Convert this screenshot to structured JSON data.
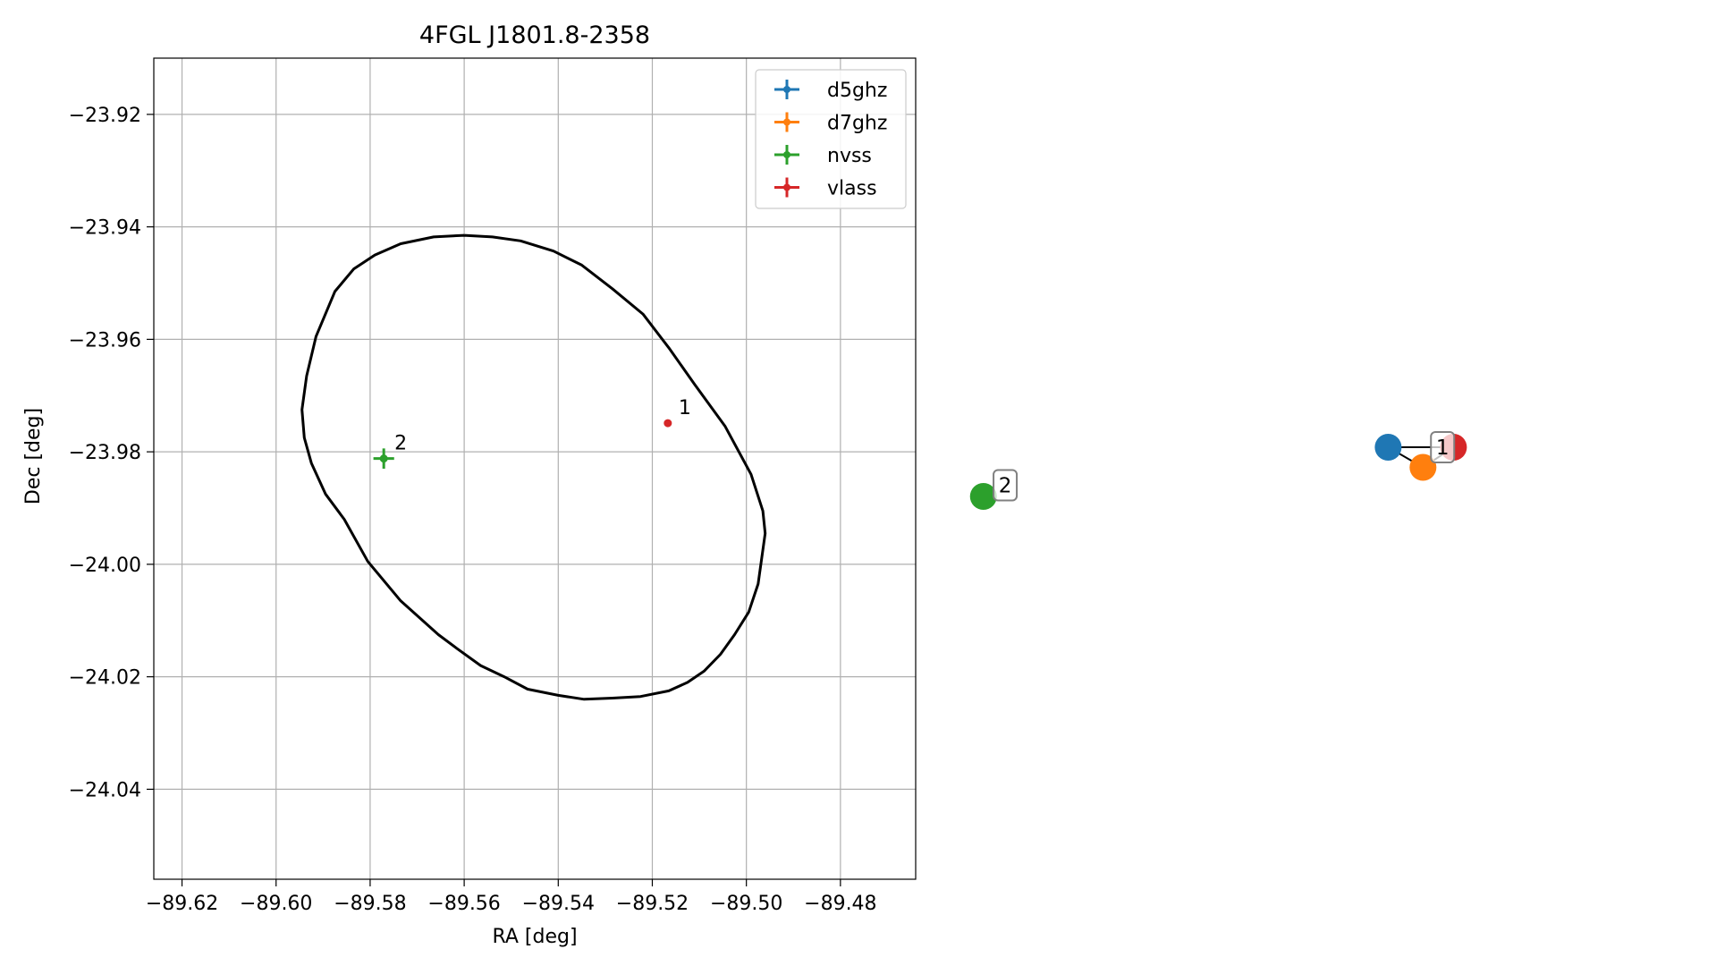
{
  "chart_data": [
    {
      "type": "scatter",
      "title": "4FGL J1801.8-2358",
      "xlabel": "RA [deg]",
      "ylabel": "Dec [deg]",
      "xlim": [
        -89.626,
        -89.464
      ],
      "ylim": [
        -24.056,
        -23.91
      ],
      "x_ticks": [
        -89.62,
        -89.6,
        -89.58,
        -89.56,
        -89.54,
        -89.52,
        -89.5,
        -89.48
      ],
      "x_tick_labels": [
        "−89.62",
        "−89.60",
        "−89.58",
        "−89.56",
        "−89.54",
        "−89.52",
        "−89.50",
        "−89.48"
      ],
      "y_ticks": [
        -23.92,
        -23.94,
        -23.96,
        -23.98,
        -24.0,
        -24.02,
        -24.04
      ],
      "y_tick_labels": [
        "−23.92",
        "−23.94",
        "−23.96",
        "−23.98",
        "−24.00",
        "−24.02",
        "−24.04"
      ],
      "grid": true,
      "legend_position": "top-right",
      "series": [
        {
          "name": "d5ghz",
          "color": "#1f77b4",
          "points": []
        },
        {
          "name": "d7ghz",
          "color": "#ff7f0e",
          "points": []
        },
        {
          "name": "nvss",
          "color": "#2ca02c",
          "points": [
            {
              "x": -89.5771,
              "y": -23.9812,
              "label": "2",
              "xerr": 0.0022,
              "yerr": 0.0018
            }
          ]
        },
        {
          "name": "vlass",
          "color": "#d62728",
          "points": [
            {
              "x": -89.5167,
              "y": -23.9749,
              "label": "1",
              "xerr": 0.0003,
              "yerr": 0.0003
            }
          ]
        }
      ],
      "ellipse": {
        "color": "#000000",
        "points": [
          [
            -89.56,
            -23.9415
          ],
          [
            -89.554,
            -23.9418
          ],
          [
            -89.548,
            -23.9425
          ],
          [
            -89.541,
            -23.9443
          ],
          [
            -89.535,
            -23.9468
          ],
          [
            -89.5285,
            -23.951
          ],
          [
            -89.522,
            -23.9555
          ],
          [
            -89.5165,
            -23.9615
          ],
          [
            -89.511,
            -23.968
          ],
          [
            -89.5045,
            -23.9755
          ],
          [
            -89.499,
            -23.984
          ],
          [
            -89.4965,
            -23.9905
          ],
          [
            -89.496,
            -23.9945
          ],
          [
            -89.4975,
            -24.0035
          ],
          [
            -89.4995,
            -24.0085
          ],
          [
            -89.5025,
            -24.0125
          ],
          [
            -89.5055,
            -24.016
          ],
          [
            -89.509,
            -24.019
          ],
          [
            -89.5125,
            -24.021
          ],
          [
            -89.5165,
            -24.0225
          ],
          [
            -89.5225,
            -24.0235
          ],
          [
            -89.5285,
            -24.0238
          ],
          [
            -89.5345,
            -24.024
          ],
          [
            -89.54,
            -24.0233
          ],
          [
            -89.5465,
            -24.0222
          ],
          [
            -89.5515,
            -24.02
          ],
          [
            -89.5565,
            -24.018
          ],
          [
            -89.5615,
            -24.015
          ],
          [
            -89.5655,
            -24.0125
          ],
          [
            -89.5735,
            -24.0065
          ],
          [
            -89.5805,
            -23.9995
          ],
          [
            -89.5855,
            -23.992
          ],
          [
            -89.5895,
            -23.9875
          ],
          [
            -89.5925,
            -23.982
          ],
          [
            -89.594,
            -23.9775
          ],
          [
            -89.5945,
            -23.9725
          ],
          [
            -89.5935,
            -23.9665
          ],
          [
            -89.5915,
            -23.9595
          ],
          [
            -89.5875,
            -23.9515
          ],
          [
            -89.5835,
            -23.9475
          ],
          [
            -89.579,
            -23.945
          ],
          [
            -89.5735,
            -23.943
          ],
          [
            -89.5665,
            -23.9418
          ],
          [
            -89.56,
            -23.9415
          ]
        ]
      }
    },
    {
      "type": "network",
      "nodes": [
        {
          "id": "d5ghz",
          "color": "#1f77b4",
          "x": -0.05,
          "y": 0.12
        },
        {
          "id": "d7ghz",
          "color": "#ff7f0e",
          "x": 0.03,
          "y": 0.03
        },
        {
          "id": "vlass",
          "color": "#d62728",
          "x": 0.1,
          "y": 0.12
        },
        {
          "id": "nvss",
          "color": "#2ca02c",
          "x": -0.98,
          "y": -0.1
        }
      ],
      "edges": [
        [
          "d5ghz",
          "vlass"
        ],
        [
          "d5ghz",
          "d7ghz"
        ],
        [
          "d7ghz",
          "vlass"
        ]
      ],
      "labels": [
        {
          "text": "1",
          "x": 0.075,
          "y": 0.12
        },
        {
          "text": "2",
          "x": -0.93,
          "y": -0.05
        }
      ],
      "xlim": [
        -1.0,
        0.13
      ],
      "ylim": [
        -0.2,
        0.2
      ]
    }
  ]
}
